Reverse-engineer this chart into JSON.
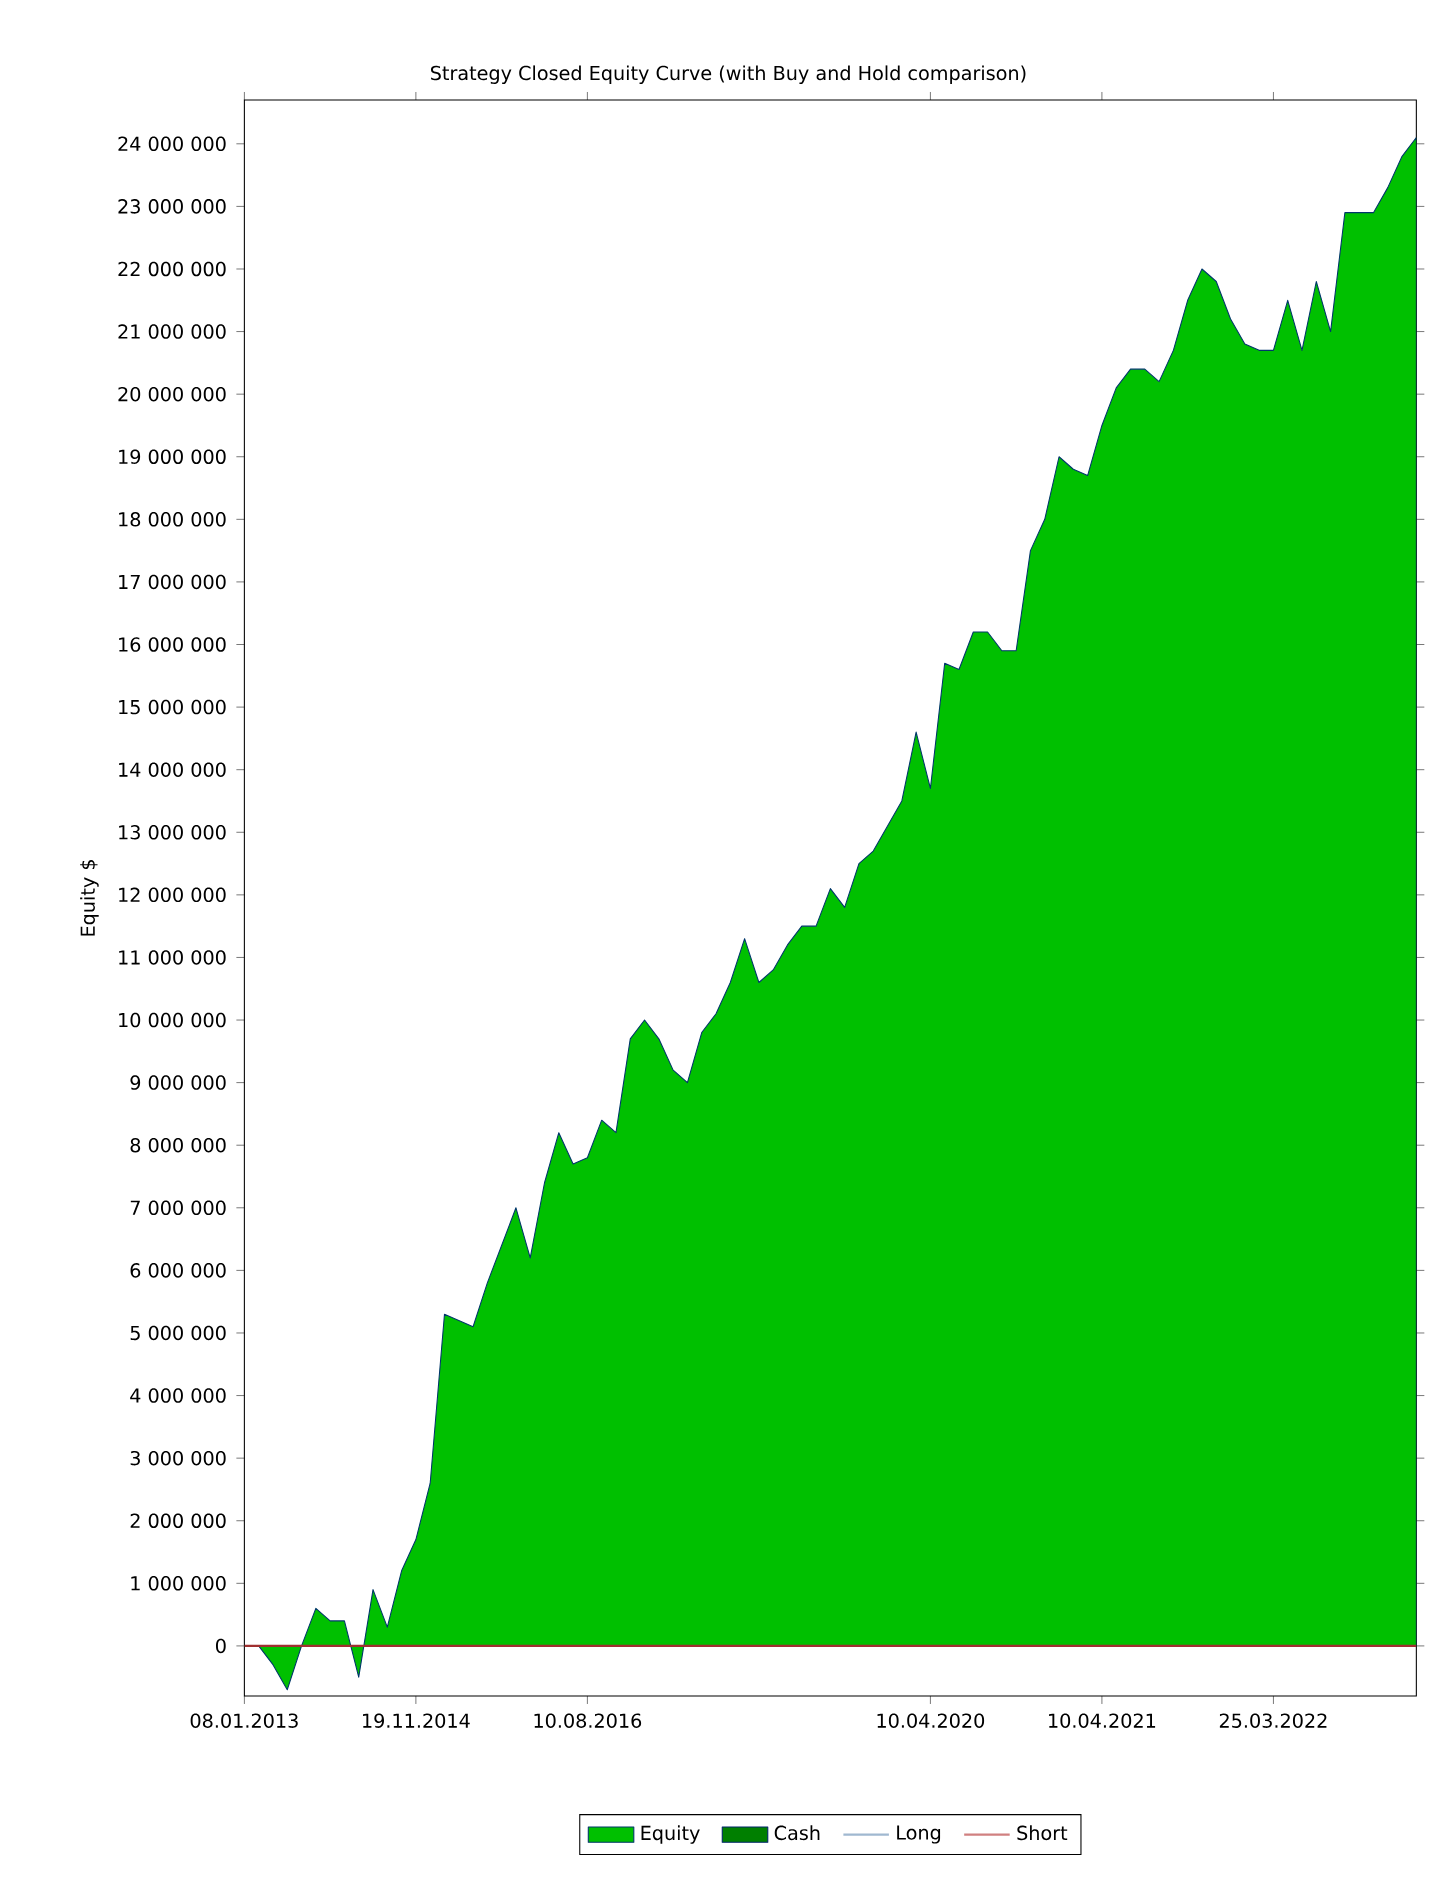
{
  "chart_data": {
    "type": "area",
    "title": "Strategy Closed Equity Curve (with Buy and Hold comparison)",
    "ylabel": "Equity $",
    "categories": [
      "08.01.2013",
      null,
      null,
      null,
      null,
      null,
      null,
      null,
      null,
      null,
      null,
      null,
      "19.11.2014",
      null,
      null,
      null,
      null,
      null,
      null,
      null,
      null,
      null,
      null,
      null,
      "10.08.2016",
      null,
      null,
      null,
      null,
      null,
      null,
      null,
      null,
      null,
      null,
      null,
      null,
      null,
      null,
      null,
      null,
      null,
      null,
      null,
      null,
      null,
      null,
      null,
      "10.04.2020",
      null,
      null,
      null,
      null,
      null,
      null,
      null,
      null,
      null,
      null,
      null,
      "10.04.2021",
      null,
      null,
      null,
      null,
      null,
      null,
      null,
      null,
      null,
      null,
      null,
      "25.03.2022",
      null,
      null,
      null,
      null,
      null,
      null,
      null,
      null,
      null,
      null
    ],
    "series": [
      {
        "name": "Equity",
        "color": "#00c000",
        "values": [
          null,
          0,
          -300000,
          -700000,
          0,
          600000,
          400000,
          400000,
          -500000,
          900000,
          300000,
          1200000,
          1700000,
          2600000,
          5300000,
          5200000,
          5100000,
          5800000,
          6400000,
          7000000,
          6200000,
          7400000,
          8200000,
          7700000,
          7800000,
          8400000,
          8200000,
          9700000,
          10000000,
          9700000,
          9200000,
          9000000,
          9800000,
          10100000,
          10600000,
          11300000,
          10600000,
          10800000,
          11200000,
          11500000,
          11500000,
          12100000,
          11800000,
          12500000,
          12700000,
          13100000,
          13500000,
          14600000,
          13700000,
          15700000,
          15600000,
          16200000,
          16200000,
          15900000,
          15900000,
          17500000,
          18000000,
          19000000,
          18800000,
          18700000,
          19500000,
          20100000,
          20400000,
          20400000,
          20200000,
          20700000,
          21500000,
          22000000,
          21800000,
          21200000,
          20800000,
          20700000,
          20700000,
          21500000,
          20700000,
          21800000,
          21000000,
          22900000,
          22900000,
          22900000,
          23300000,
          23800000,
          24100000
        ]
      },
      {
        "name": "Cash",
        "color": "#007f00",
        "values": [
          null,
          null,
          null,
          null,
          null,
          null,
          null,
          null,
          null,
          null,
          null,
          null,
          null,
          null,
          null,
          null,
          null,
          null,
          null,
          null,
          null,
          null,
          null,
          null,
          null,
          null,
          null,
          null,
          null,
          null,
          null,
          null,
          null,
          null,
          null,
          null,
          null,
          null,
          null,
          null,
          null,
          null,
          null,
          null,
          null,
          null,
          null,
          null,
          null,
          null,
          null,
          null,
          null,
          null,
          null,
          null,
          null,
          null,
          null,
          null,
          null,
          null,
          null,
          null,
          null,
          null,
          null,
          null,
          null,
          null,
          null,
          null,
          null,
          null,
          null,
          null,
          null,
          null,
          null,
          null,
          null,
          null,
          null
        ]
      },
      {
        "name": "Long",
        "type": "line",
        "color": "#a0b8d0",
        "values": [
          null,
          null,
          null,
          null,
          null,
          null,
          null,
          null,
          null,
          null,
          null,
          null,
          null,
          null,
          null,
          null,
          null,
          null,
          null,
          null,
          null,
          null,
          null,
          null,
          null,
          null,
          null,
          null,
          null,
          null,
          null,
          null,
          null,
          null,
          null,
          null,
          null,
          null,
          null,
          null,
          null,
          null,
          null,
          null,
          null,
          null,
          null,
          null,
          null,
          null,
          null,
          null,
          null,
          null,
          null,
          null,
          null,
          null,
          null,
          null,
          null,
          null,
          null,
          null,
          null,
          null,
          null,
          null,
          null,
          null,
          null,
          null,
          null,
          null,
          null,
          null,
          null,
          null,
          null,
          null,
          null,
          null,
          null
        ]
      },
      {
        "name": "Short",
        "type": "line",
        "color": "#d08080",
        "values": [
          null,
          null,
          null,
          null,
          null,
          null,
          null,
          null,
          null,
          null,
          null,
          null,
          null,
          null,
          null,
          null,
          null,
          null,
          null,
          null,
          null,
          null,
          null,
          null,
          null,
          null,
          null,
          null,
          null,
          null,
          null,
          null,
          null,
          null,
          null,
          null,
          null,
          null,
          null,
          null,
          null,
          null,
          null,
          null,
          null,
          null,
          null,
          null,
          null,
          null,
          null,
          null,
          null,
          null,
          null,
          null,
          null,
          null,
          null,
          null,
          null,
          null,
          null,
          null,
          null,
          null,
          null,
          null,
          null,
          null,
          null,
          null,
          null,
          null,
          null,
          null,
          null,
          null,
          null,
          null,
          null,
          null,
          null
        ]
      }
    ],
    "ylim": [
      -800000,
      24700000
    ],
    "yticks": [
      {
        "value": 0,
        "label": "0"
      },
      {
        "value": 1000000,
        "label": "1 000 000"
      },
      {
        "value": 2000000,
        "label": "2 000 000"
      },
      {
        "value": 3000000,
        "label": "3 000 000"
      },
      {
        "value": 4000000,
        "label": "4 000 000"
      },
      {
        "value": 5000000,
        "label": "5 000 000"
      },
      {
        "value": 6000000,
        "label": "6 000 000"
      },
      {
        "value": 7000000,
        "label": "7 000 000"
      },
      {
        "value": 8000000,
        "label": "8 000 000"
      },
      {
        "value": 9000000,
        "label": "9 000 000"
      },
      {
        "value": 10000000,
        "label": "10 000 000"
      },
      {
        "value": 11000000,
        "label": "11 000 000"
      },
      {
        "value": 12000000,
        "label": "12 000 000"
      },
      {
        "value": 13000000,
        "label": "13 000 000"
      },
      {
        "value": 14000000,
        "label": "14 000 000"
      },
      {
        "value": 15000000,
        "label": "15 000 000"
      },
      {
        "value": 16000000,
        "label": "16 000 000"
      },
      {
        "value": 17000000,
        "label": "17 000 000"
      },
      {
        "value": 18000000,
        "label": "18 000 000"
      },
      {
        "value": 19000000,
        "label": "19 000 000"
      },
      {
        "value": 20000000,
        "label": "20 000 000"
      },
      {
        "value": 21000000,
        "label": "21 000 000"
      },
      {
        "value": 22000000,
        "label": "22 000 000"
      },
      {
        "value": 23000000,
        "label": "23 000 000"
      },
      {
        "value": 24000000,
        "label": "24 000 000"
      }
    ],
    "ref_lines": [
      {
        "axis": "y",
        "value": 0,
        "color": "#a03030"
      }
    ],
    "legend": "bottom"
  }
}
